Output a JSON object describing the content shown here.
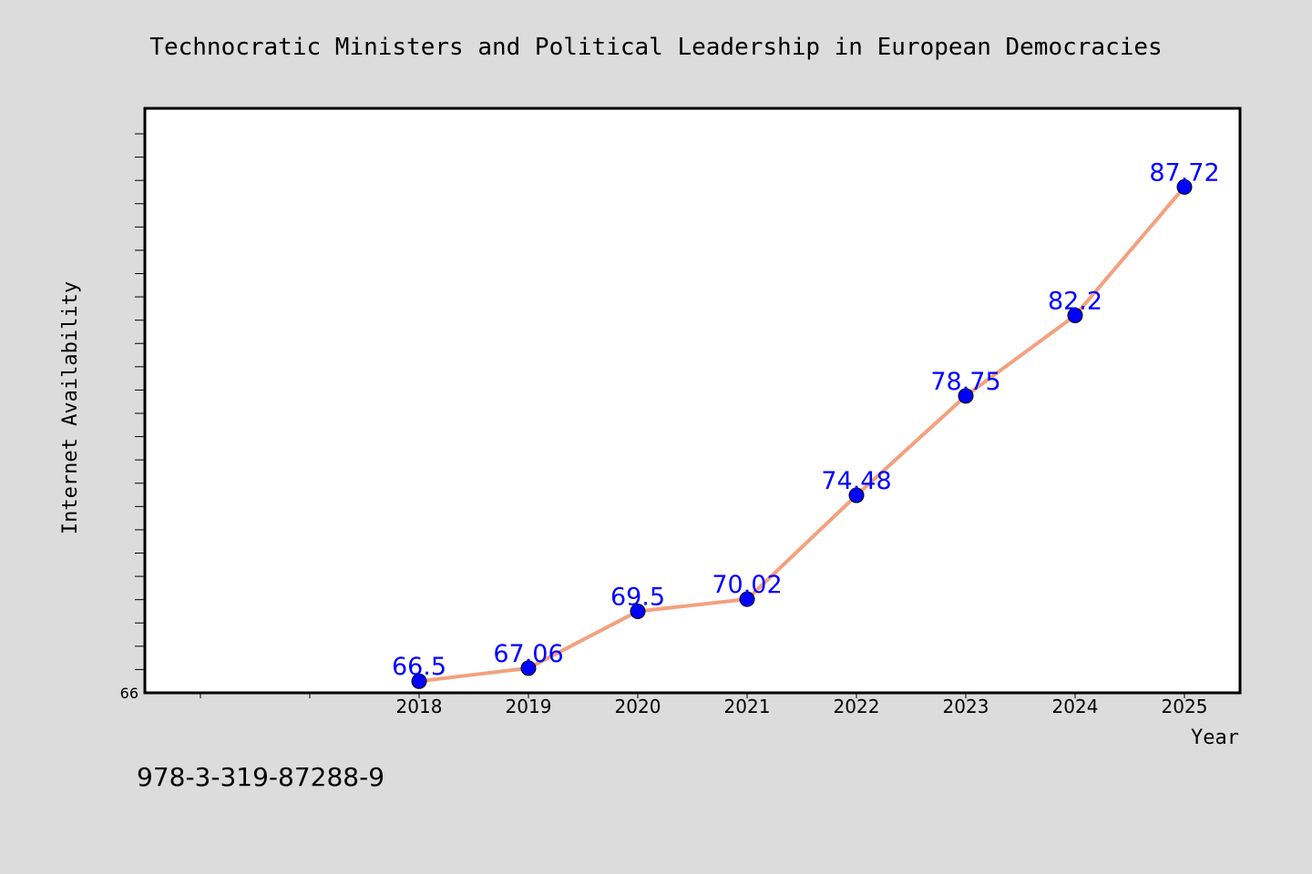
{
  "chart_data": {
    "type": "line",
    "title": "Technocratic Ministers and Political Leadership in European Democracies",
    "xlabel": "Year",
    "ylabel": "Internet Availability",
    "categories": [
      "2018",
      "2019",
      "2020",
      "2021",
      "2022",
      "2023",
      "2024",
      "2025"
    ],
    "series": [
      {
        "values": [
          66.5,
          67.06,
          69.5,
          70.02,
          74.48,
          78.75,
          82.2,
          87.72
        ],
        "labels": [
          "66.5",
          "67.06",
          "69.5",
          "70.02",
          "74.48",
          "78.75",
          "82.2",
          "87.72"
        ]
      }
    ],
    "ylim": [
      66,
      90
    ],
    "y_tick_labels": [
      "66"
    ],
    "grid": false,
    "legend": "none",
    "colors": {
      "line": "#f4a07e",
      "marker": "#0000ff",
      "label": "#0000ff",
      "background": "#dcdcdc",
      "plot_background": "#ffffff"
    }
  },
  "footer": {
    "isbn": "978-3-319-87288-9"
  }
}
